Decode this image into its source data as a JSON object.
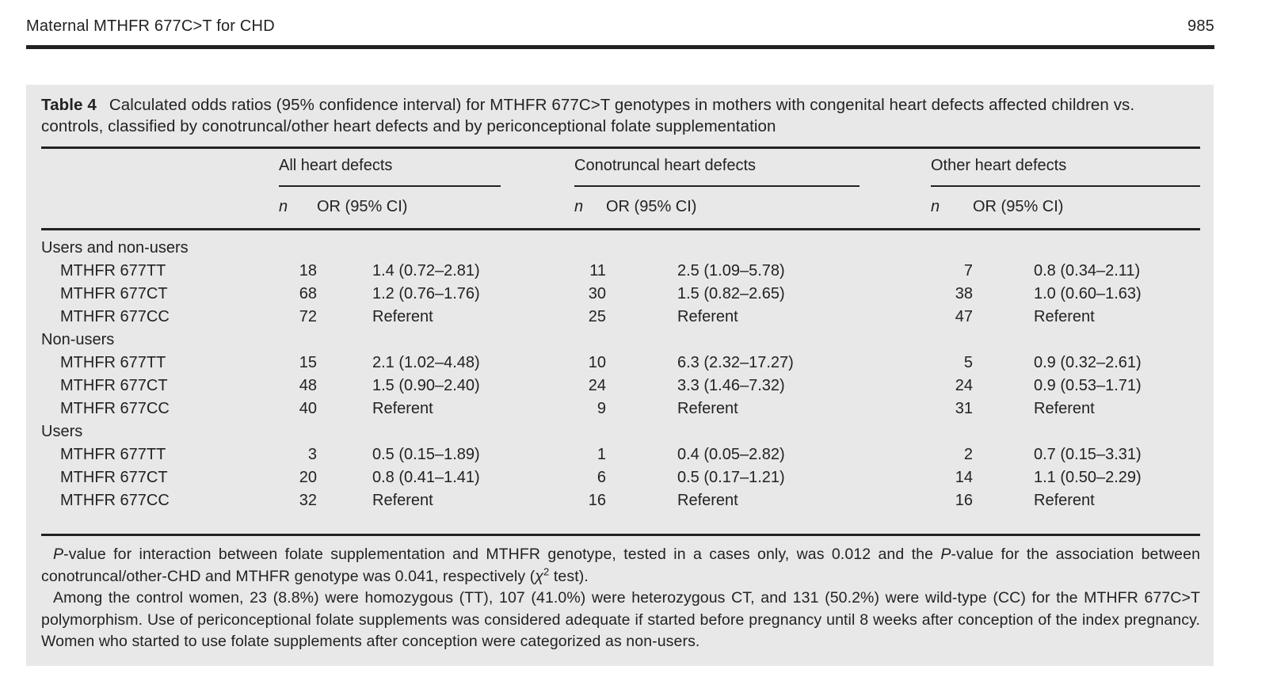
{
  "colors": {
    "panel_background": "#e8e8e8",
    "text": "#242124"
  },
  "page": {
    "running_head": "Maternal MTHFR 677C>T for CHD",
    "page_number": "985"
  },
  "table": {
    "label": "Table 4",
    "caption": "Calculated odds ratios (95% confidence interval) for MTHFR 677C>T genotypes in mothers with congenital heart defects affected children vs. controls, classified by conotruncal/other heart defects and by periconceptional folate supplementation",
    "column_groups": [
      {
        "label": "All heart defects"
      },
      {
        "label": "Conotruncal heart defects"
      },
      {
        "label": "Other heart defects"
      }
    ],
    "subheaders": {
      "n": "n",
      "or": "OR (95% CI)"
    },
    "sections": [
      {
        "label": "Users and non-users",
        "rows": [
          {
            "label": "MTHFR 677TT",
            "all_n": "18",
            "all_or": "1.4 (0.72–2.81)",
            "cono_n": "11",
            "cono_or": "2.5 (1.09–5.78)",
            "other_n": "7",
            "other_or": "0.8 (0.34–2.11)"
          },
          {
            "label": "MTHFR 677CT",
            "all_n": "68",
            "all_or": "1.2 (0.76–1.76)",
            "cono_n": "30",
            "cono_or": "1.5 (0.82–2.65)",
            "other_n": "38",
            "other_or": "1.0 (0.60–1.63)"
          },
          {
            "label": "MTHFR 677CC",
            "all_n": "72",
            "all_or": "Referent",
            "cono_n": "25",
            "cono_or": "Referent",
            "other_n": "47",
            "other_or": "Referent"
          }
        ]
      },
      {
        "label": "Non-users",
        "rows": [
          {
            "label": "MTHFR 677TT",
            "all_n": "15",
            "all_or": "2.1 (1.02–4.48)",
            "cono_n": "10",
            "cono_or": "6.3 (2.32–17.27)",
            "other_n": "5",
            "other_or": "0.9 (0.32–2.61)"
          },
          {
            "label": "MTHFR 677CT",
            "all_n": "48",
            "all_or": "1.5 (0.90–2.40)",
            "cono_n": "24",
            "cono_or": "3.3 (1.46–7.32)",
            "other_n": "24",
            "other_or": "0.9 (0.53–1.71)"
          },
          {
            "label": "MTHFR 677CC",
            "all_n": "40",
            "all_or": "Referent",
            "cono_n": "9",
            "cono_or": "Referent",
            "other_n": "31",
            "other_or": "Referent"
          }
        ]
      },
      {
        "label": "Users",
        "rows": [
          {
            "label": "MTHFR 677TT",
            "all_n": "3",
            "all_or": "0.5 (0.15–1.89)",
            "cono_n": "1",
            "cono_or": "0.4 (0.05–2.82)",
            "other_n": "2",
            "other_or": "0.7 (0.15–3.31)"
          },
          {
            "label": "MTHFR 677CT",
            "all_n": "20",
            "all_or": "0.8 (0.41–1.41)",
            "cono_n": "6",
            "cono_or": "0.5 (0.17–1.21)",
            "other_n": "14",
            "other_or": "1.1 (0.50–2.29)"
          },
          {
            "label": "MTHFR 677CC",
            "all_n": "32",
            "all_or": "Referent",
            "cono_n": "16",
            "cono_or": "Referent",
            "other_n": "16",
            "other_or": "Referent"
          }
        ]
      }
    ],
    "footnotes": [
      [
        {
          "text": "P",
          "italic": true
        },
        {
          "text": "-value for interaction between folate supplementation and MTHFR genotype, tested in a cases only, was 0.012 and the "
        },
        {
          "text": "P",
          "italic": true
        },
        {
          "text": "-value for the association between conotruncal/other-CHD and MTHFR genotype was 0.041, respectively ("
        },
        {
          "text": "χ",
          "italic": true
        },
        {
          "text": "2",
          "sup": true
        },
        {
          "text": " test)."
        }
      ],
      [
        {
          "text": "Among the control women, 23 (8.8%) were homozygous (TT), 107 (41.0%) were heterozygous CT, and 131 (50.2%) were wild-type (CC) for the MTHFR 677C>T polymorphism. Use of periconceptional folate supplements was considered adequate if started before pregnancy until 8 weeks after conception of the index pregnancy. Women who started to use folate supplements after conception were categorized as non-users."
        }
      ]
    ]
  }
}
